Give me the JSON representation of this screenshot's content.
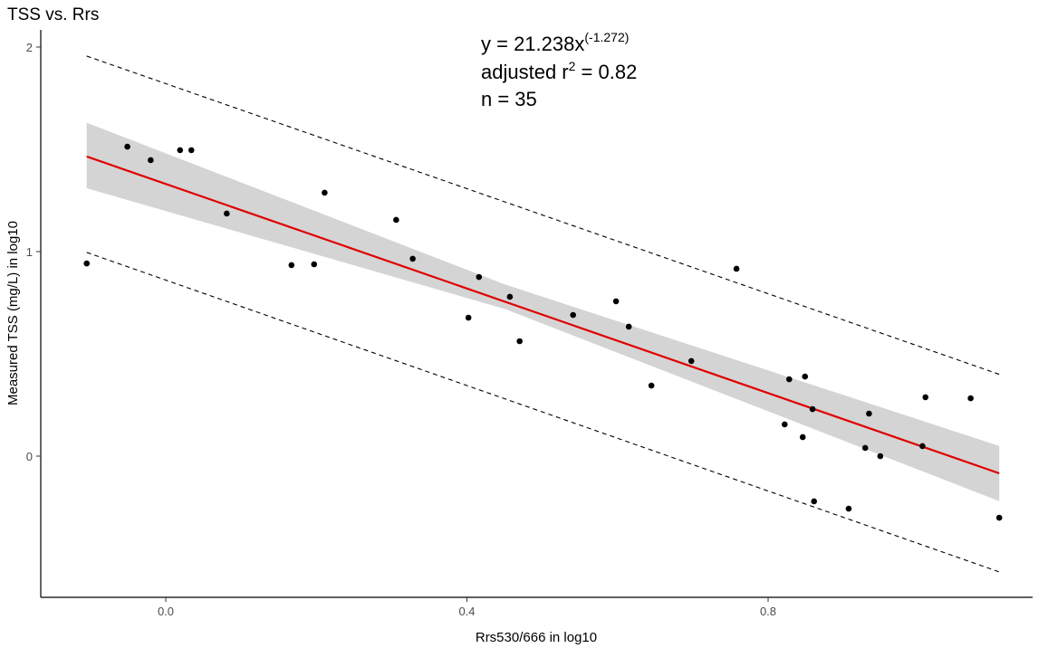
{
  "chart_data": {
    "type": "scatter",
    "title": "TSS vs. Rrs",
    "xlabel": "Rrs530/666 in log10",
    "ylabel": "Measured TSS (mg/L) in log10",
    "xlim": [
      -0.165,
      1.155
    ],
    "ylim": [
      -0.69,
      2.09
    ],
    "xticks": [
      0.0,
      0.4,
      0.8
    ],
    "xtick_labels": [
      "0.0",
      "0.4",
      "0.8"
    ],
    "yticks": [
      0,
      1,
      2
    ],
    "ytick_labels": [
      "0",
      "1",
      "2"
    ],
    "grid": false,
    "annotation": {
      "equation_prefix": "y = 21.238x",
      "equation_exponent": "(-1.272)",
      "r2_prefix": "adjusted r",
      "r2_sup": "2",
      "r2_value": " = 0.82",
      "n": "n = 35"
    },
    "points": [
      [
        -0.105,
        0.942
      ],
      [
        -0.051,
        1.513
      ],
      [
        -0.02,
        1.447
      ],
      [
        0.019,
        1.496
      ],
      [
        0.034,
        1.496
      ],
      [
        0.081,
        1.186
      ],
      [
        0.167,
        0.934
      ],
      [
        0.197,
        0.938
      ],
      [
        0.211,
        1.288
      ],
      [
        0.306,
        1.155
      ],
      [
        0.328,
        0.965
      ],
      [
        0.402,
        0.677
      ],
      [
        0.416,
        0.876
      ],
      [
        0.457,
        0.779
      ],
      [
        0.47,
        0.562
      ],
      [
        0.541,
        0.69
      ],
      [
        0.598,
        0.757
      ],
      [
        0.615,
        0.633
      ],
      [
        0.645,
        0.345
      ],
      [
        0.698,
        0.465
      ],
      [
        0.758,
        0.916
      ],
      [
        0.822,
        0.155
      ],
      [
        0.828,
        0.376
      ],
      [
        0.846,
        0.093
      ],
      [
        0.849,
        0.389
      ],
      [
        0.859,
        0.23
      ],
      [
        0.861,
        -0.221
      ],
      [
        0.907,
        -0.257
      ],
      [
        0.929,
        0.04
      ],
      [
        0.934,
        0.208
      ],
      [
        0.949,
        0.0
      ],
      [
        1.005,
        0.049
      ],
      [
        1.009,
        0.288
      ],
      [
        1.069,
        0.283
      ],
      [
        1.107,
        -0.301
      ]
    ],
    "fit_line": {
      "x": [
        -0.105,
        1.107
      ],
      "y": [
        1.465,
        -0.084
      ],
      "color": "#e00000"
    },
    "confidence_band": {
      "x": [
        -0.105,
        0.45,
        1.107
      ],
      "upper": [
        1.63,
        0.84,
        0.05
      ],
      "lower": [
        1.31,
        0.72,
        -0.22
      ],
      "color": "#d4d4d4"
    },
    "prediction_upper": {
      "x": [
        -0.105,
        1.107
      ],
      "y": [
        1.956,
        0.4
      ]
    },
    "prediction_lower": {
      "x": [
        -0.105,
        1.107
      ],
      "y": [
        0.996,
        -0.566
      ]
    }
  }
}
